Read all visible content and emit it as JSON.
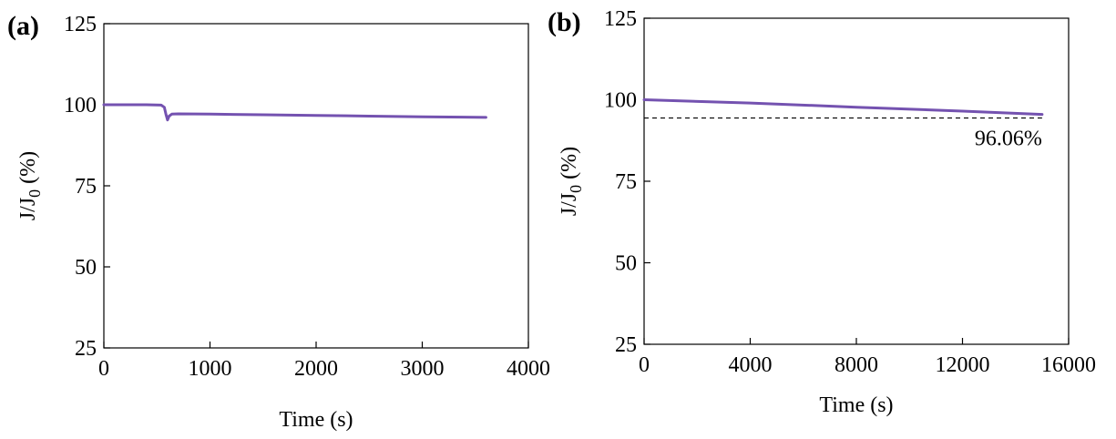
{
  "chart_data": [
    {
      "type": "line",
      "panel_label": "(a)",
      "xlabel": "Time (s)",
      "ylabel": "J/J",
      "ylabel_sub": "0",
      "ylabel_suffix": " (%)",
      "xlim": [
        0,
        4000
      ],
      "ylim": [
        25,
        125
      ],
      "xticks": [
        0,
        1000,
        2000,
        3000,
        4000
      ],
      "yticks": [
        25,
        50,
        75,
        100,
        125
      ],
      "series": [
        {
          "color": "#7452b0",
          "x": [
            0,
            400,
            540,
            570,
            585,
            600,
            615,
            640,
            700,
            1000,
            1500,
            2000,
            2500,
            3000,
            3600
          ],
          "y": [
            100,
            100,
            99.9,
            99.2,
            97.0,
            95.3,
            96.5,
            97.1,
            97.2,
            97.1,
            96.9,
            96.7,
            96.5,
            96.3,
            96.1
          ]
        }
      ]
    },
    {
      "type": "line",
      "panel_label": "(b)",
      "xlabel": "Time (s)",
      "ylabel": "J/J",
      "ylabel_sub": "0",
      "ylabel_suffix": " (%)",
      "xlim": [
        0,
        16000
      ],
      "ylim": [
        25,
        125
      ],
      "xticks": [
        0,
        4000,
        8000,
        12000,
        16000
      ],
      "yticks": [
        25,
        50,
        75,
        100,
        125
      ],
      "series": [
        {
          "color": "#7452b0",
          "x": [
            0,
            4000,
            8000,
            12000,
            15000
          ],
          "y": [
            100,
            99.0,
            97.7,
            96.5,
            95.5
          ]
        }
      ],
      "reference_line": {
        "y": 94.4,
        "x_range": [
          0,
          15000
        ],
        "style": "dashed"
      },
      "annotation": "96.06%"
    }
  ]
}
